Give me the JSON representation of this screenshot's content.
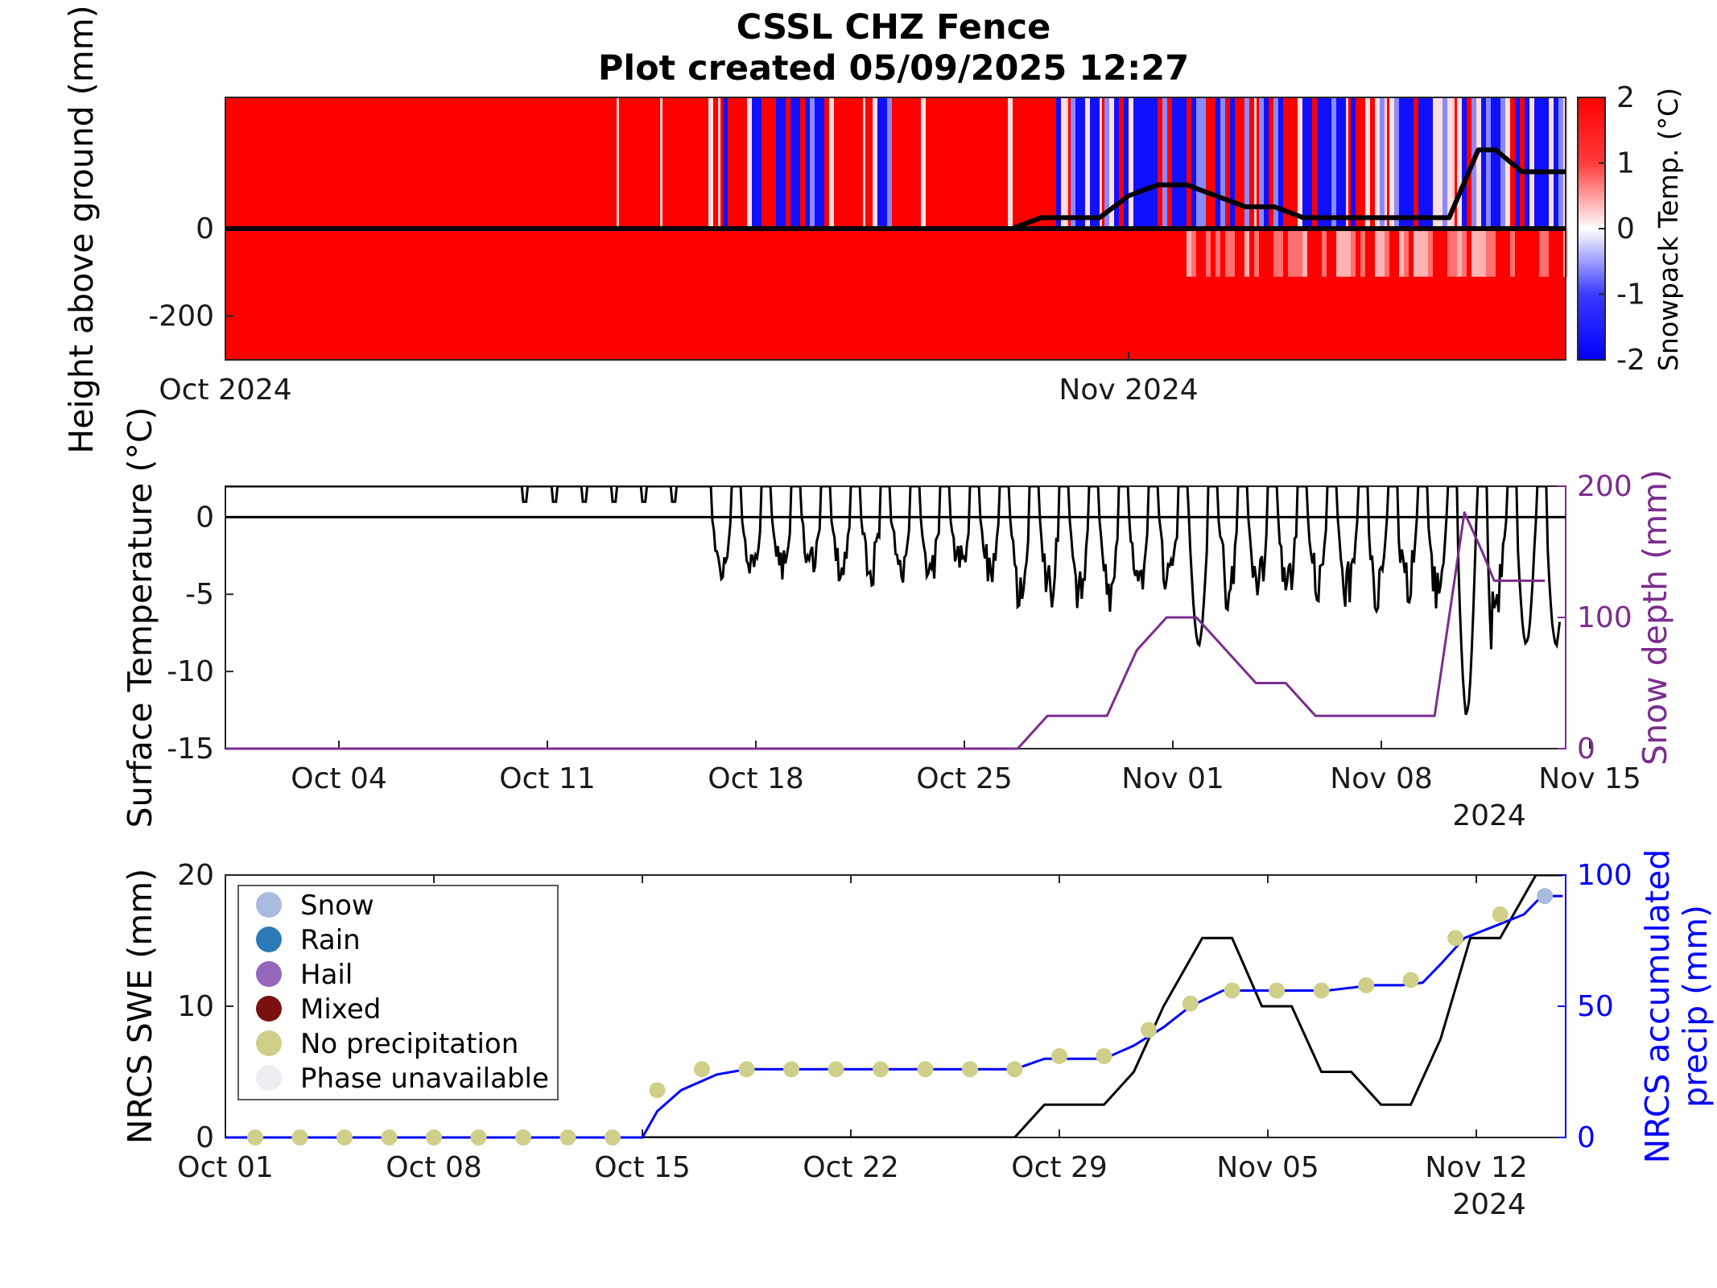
{
  "title": {
    "line1": "CSSL CHZ Fence",
    "line2": "Plot created 05/09/2025 12:27"
  },
  "colors": {
    "warm": "#ff0000",
    "cold": "#0000ff",
    "snow_depth": "#7b2d8e",
    "precip": "#0000ff",
    "marker_no_precip": "#cfcf8a",
    "marker_snow": "#a8bcdf"
  },
  "chart_data": [
    {
      "type": "heatmap",
      "ylabel": "Height above ground (mm)",
      "colorbar_label": "Snowpack Temp. (°C)",
      "colorbar_ticks": [
        "2",
        "1",
        "0",
        "-1",
        "-2"
      ],
      "colorbar_range": [
        -2,
        2
      ],
      "x_tick_labels": [
        "Oct 2024",
        "Nov 2024"
      ],
      "y_tick_labels": [
        "0",
        "-200"
      ],
      "ylim": [
        -300,
        300
      ],
      "xlim_days": [
        0,
        46
      ],
      "zero_line": 0,
      "snow_depth_line": {
        "x": [
          0,
          27,
          28,
          30,
          31,
          32,
          33,
          34,
          35,
          36,
          37,
          38,
          39,
          40,
          41,
          42,
          43,
          43.6,
          44.5,
          46
        ],
        "y": [
          0,
          0,
          25,
          25,
          75,
          100,
          100,
          75,
          50,
          50,
          25,
          25,
          25,
          25,
          25,
          25,
          180,
          180,
          130,
          130
        ]
      }
    },
    {
      "type": "line",
      "ylabel": "Surface Temperature (°C)",
      "ylabel_right": "Snow depth (mm)",
      "ylim": [
        -15,
        2
      ],
      "ylim_right": [
        0,
        200
      ],
      "y_ticks": [
        "0",
        "-5",
        "-10",
        "-15"
      ],
      "y_ticks_right": [
        "200",
        "100",
        "0"
      ],
      "x_tick_labels": [
        "Oct 04",
        "Oct 11",
        "Oct 18",
        "Oct 25",
        "Nov 01",
        "Nov 08",
        "Nov 15"
      ],
      "x_year": "2024",
      "series": [
        {
          "name": "Surface Temperature (°C)"
        },
        {
          "name": "Snow depth (mm)",
          "x": [
            "Oct 01",
            "Oct 27",
            "Oct 28",
            "Oct 30",
            "Oct 31",
            "Nov 01",
            "Nov 02",
            "Nov 03",
            "Nov 04",
            "Nov 05",
            "Nov 06",
            "Nov 07",
            "Nov 08",
            "Nov 09",
            "Nov 10",
            "Nov 11",
            "Nov 12",
            "Nov 13",
            "Nov 14"
          ],
          "values": [
            0,
            0,
            25,
            25,
            75,
            100,
            100,
            75,
            50,
            50,
            25,
            25,
            25,
            25,
            25,
            180,
            150,
            128,
            128
          ]
        }
      ]
    },
    {
      "type": "line",
      "ylabel": "NRCS SWE (mm)",
      "ylabel_right": [
        "NRCS accumulated",
        "precip (mm)"
      ],
      "ylim": [
        0,
        20
      ],
      "ylim_right": [
        0,
        100
      ],
      "y_ticks": [
        "20",
        "10",
        "0"
      ],
      "y_ticks_right": [
        "100",
        "50",
        "0"
      ],
      "x_tick_labels": [
        "Oct 01",
        "Oct 08",
        "Oct 15",
        "Oct 22",
        "Oct 29",
        "Nov 05",
        "Nov 12"
      ],
      "x_year": "2024",
      "legend": {
        "placement": "top-left",
        "entries": [
          {
            "label": "Snow",
            "color": "#a8bcdf"
          },
          {
            "label": "Rain",
            "color": "#2c7bb6"
          },
          {
            "label": "Hail",
            "color": "#9467bd"
          },
          {
            "label": "Mixed",
            "color": "#7b1010"
          },
          {
            "label": "No precipitation",
            "color": "#cfcf8a"
          },
          {
            "label": "Phase unavailable",
            "color": "#eeeef2"
          }
        ]
      },
      "series": [
        {
          "name": "NRCS SWE (mm)",
          "x": [
            0,
            26.5,
            27.5,
            29.5,
            30.5,
            31.5,
            32.8,
            33.8,
            34.8,
            35.8,
            36.8,
            37.8,
            38.8,
            39.8,
            40.8,
            41.8,
            42.8,
            44,
            44.9
          ],
          "values": [
            0,
            0,
            2.5,
            2.5,
            5,
            10,
            15.2,
            15.2,
            10,
            10,
            5,
            5,
            2.5,
            2.5,
            7.5,
            15.2,
            15.2,
            20,
            20
          ]
        },
        {
          "name": "NRCS accumulated precip (mm)",
          "x": [
            0,
            14,
            14.5,
            15.3,
            16.5,
            17.5,
            25,
            26.5,
            27.5,
            29,
            29.5,
            30.5,
            31.5,
            32.4,
            33.5,
            36,
            37,
            38.5,
            39.5,
            40.2,
            40.8,
            41.6,
            42.5,
            43.6,
            44.2,
            44.9
          ],
          "values": [
            0,
            0,
            10,
            18,
            24,
            26,
            26,
            26,
            30,
            30,
            30,
            35,
            42,
            50,
            56,
            56,
            56,
            58,
            58,
            59,
            66,
            76,
            80,
            85,
            92,
            92
          ]
        }
      ],
      "markers_no_precip": {
        "x": [
          1,
          2.5,
          4,
          5.5,
          7,
          8.5,
          10,
          11.5,
          13,
          14.5,
          16,
          17.5,
          19,
          20.5,
          22,
          23.5,
          25,
          26.5,
          28,
          29.5,
          31,
          32.4,
          33.8,
          35.3,
          36.8,
          38.3,
          39.8,
          41.3,
          42.8
        ],
        "values": [
          0,
          0,
          0,
          0,
          0,
          0,
          0,
          0,
          0,
          18,
          26,
          26,
          26,
          26,
          26,
          26,
          26,
          26,
          31,
          31,
          41,
          51,
          56,
          56,
          56,
          58,
          60,
          76,
          85
        ]
      },
      "markers_snow": {
        "x": [
          44.3
        ],
        "values": [
          92
        ]
      }
    }
  ]
}
